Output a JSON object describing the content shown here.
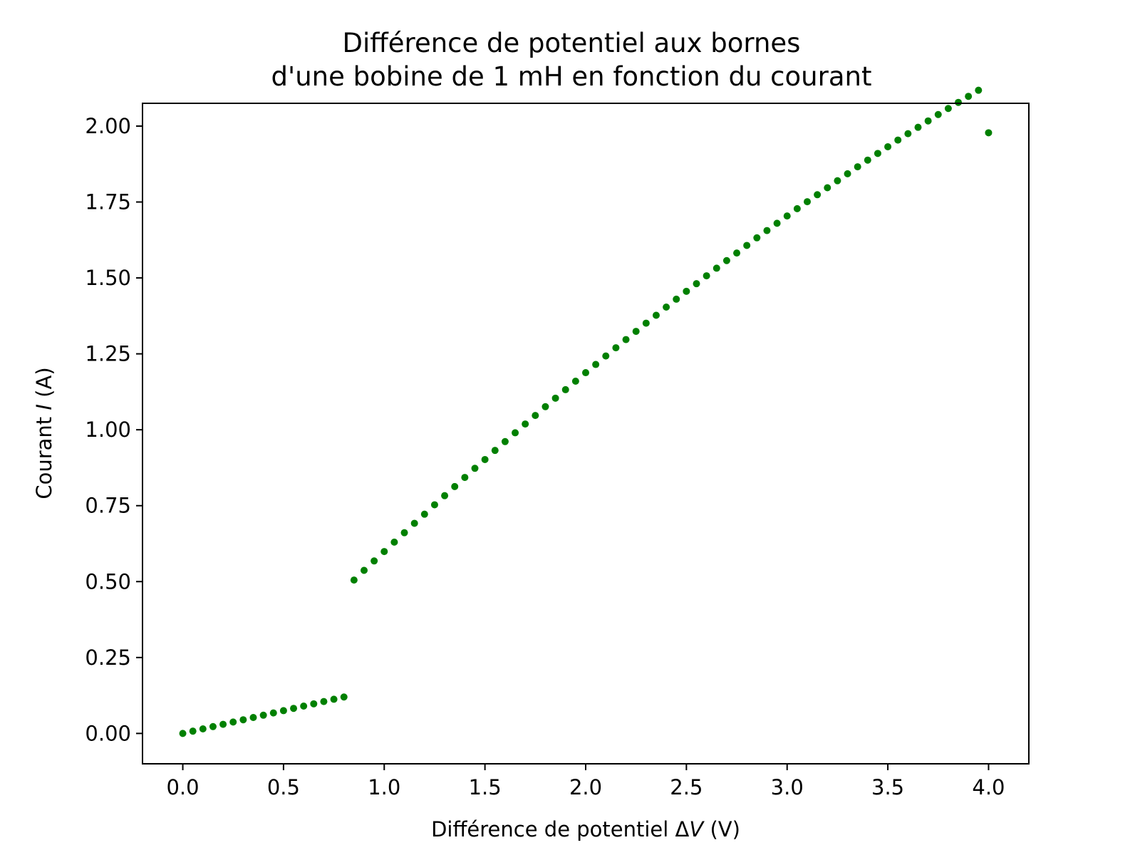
{
  "chart_data": {
    "type": "scatter",
    "title": [
      "Différence de potentiel aux bornes",
      "d'une bobine de 1 mH en fonction du courant"
    ],
    "xlabel": {
      "prefix": "Différence de potentiel Δ",
      "variable": "V",
      "suffix": " (V)"
    },
    "ylabel": {
      "prefix": "Courant ",
      "variable": "I",
      "suffix": " (A)"
    },
    "xlim": [
      -0.2,
      4.2
    ],
    "ylim": [
      -0.1,
      2.075
    ],
    "xticks": [
      0.0,
      0.5,
      1.0,
      1.5,
      2.0,
      2.5,
      3.0,
      3.5,
      4.0
    ],
    "xtick_labels": [
      "0.0",
      "0.5",
      "1.0",
      "1.5",
      "2.0",
      "2.5",
      "3.0",
      "3.5",
      "4.0"
    ],
    "yticks": [
      0.0,
      0.25,
      0.5,
      0.75,
      1.0,
      1.25,
      1.5,
      1.75,
      2.0
    ],
    "ytick_labels": [
      "0.00",
      "0.25",
      "0.50",
      "0.75",
      "1.00",
      "1.25",
      "1.50",
      "1.75",
      "2.00"
    ],
    "grid": false,
    "series": [
      {
        "color": "#008000",
        "segments": [
          {
            "x": [
              0.0,
              0.05,
              0.1,
              0.15,
              0.2,
              0.25,
              0.3,
              0.35,
              0.4,
              0.45,
              0.5,
              0.55,
              0.6,
              0.65,
              0.7,
              0.75,
              0.8
            ],
            "y": [
              0.0,
              0.0075,
              0.015,
              0.0225,
              0.03,
              0.0375,
              0.045,
              0.0525,
              0.06,
              0.0675,
              0.075,
              0.0825,
              0.09,
              0.0975,
              0.105,
              0.1125,
              0.12
            ]
          },
          {
            "x": [
              0.85,
              0.9,
              0.95,
              1.0,
              1.05,
              1.1,
              1.15,
              1.2,
              1.25,
              1.3,
              1.35,
              1.4,
              1.45,
              1.5,
              1.55,
              1.6,
              1.65,
              1.7,
              1.75,
              1.8,
              1.85,
              1.9,
              1.95,
              2.0,
              2.05,
              2.1,
              2.15,
              2.2,
              2.25,
              2.3,
              2.35,
              2.4,
              2.45,
              2.5,
              2.55,
              2.6,
              2.65,
              2.7,
              2.75,
              2.8,
              2.85,
              2.9,
              2.95,
              3.0,
              3.05,
              3.1,
              3.15,
              3.2,
              3.25,
              3.3,
              3.35,
              3.4,
              3.45,
              3.5,
              3.55,
              3.6,
              3.65,
              3.7,
              3.75,
              3.8,
              3.85,
              3.9,
              3.95,
              4.0
            ],
            "y": [
              0.505,
              0.537,
              0.568,
              0.599,
              0.63,
              0.661,
              0.692,
              0.722,
              0.753,
              0.783,
              0.813,
              0.843,
              0.873,
              0.902,
              0.932,
              0.961,
              0.99,
              1.019,
              1.047,
              1.076,
              1.104,
              1.132,
              1.16,
              1.188,
              1.215,
              1.243,
              1.27,
              1.297,
              1.324,
              1.351,
              1.377,
              1.404,
              1.43,
              1.456,
              1.481,
              1.507,
              1.532,
              1.557,
              1.582,
              1.607,
              1.632,
              1.656,
              1.68,
              1.704,
              1.728,
              1.751,
              1.774,
              1.797,
              1.82,
              1.843,
              1.866,
              1.888,
              1.91,
              1.932,
              1.954,
              1.975,
              1.996,
              2.017,
              2.038,
              2.058,
              2.078,
              2.098,
              2.118,
              1.978
            ]
          }
        ]
      }
    ]
  }
}
